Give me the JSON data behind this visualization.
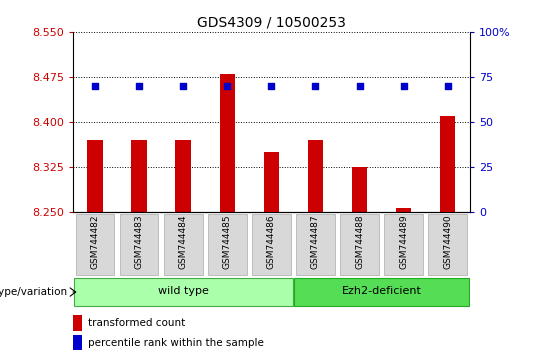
{
  "title": "GDS4309 / 10500253",
  "samples": [
    "GSM744482",
    "GSM744483",
    "GSM744484",
    "GSM744485",
    "GSM744486",
    "GSM744487",
    "GSM744488",
    "GSM744489",
    "GSM744490"
  ],
  "transformed_counts": [
    8.37,
    8.37,
    8.37,
    8.48,
    8.35,
    8.37,
    8.325,
    8.257,
    8.41
  ],
  "percentile_values": [
    70,
    70,
    70,
    70,
    70,
    70,
    70,
    70,
    70
  ],
  "ylim_left": [
    8.25,
    8.55
  ],
  "ylim_right": [
    0,
    100
  ],
  "yticks_left": [
    8.25,
    8.325,
    8.4,
    8.475,
    8.55
  ],
  "yticks_right": [
    0,
    25,
    50,
    75,
    100
  ],
  "bar_color": "#cc0000",
  "dot_color": "#0000cc",
  "group1_label": "wild type",
  "group2_label": "Ezh2-deficient",
  "group1_indices": [
    0,
    1,
    2,
    3,
    4
  ],
  "group2_indices": [
    5,
    6,
    7,
    8
  ],
  "group1_color": "#aaffaa",
  "group2_color": "#55dd55",
  "legend_bar_label": "transformed count",
  "legend_dot_label": "percentile rank within the sample",
  "genotype_label": "genotype/variation",
  "background_color": "#ffffff",
  "plot_bg_color": "#ffffff",
  "tick_label_color_left": "#cc0000",
  "tick_label_color_right": "#0000cc",
  "grid_color": "#000000",
  "bar_baseline": 8.25,
  "bar_width": 0.35
}
